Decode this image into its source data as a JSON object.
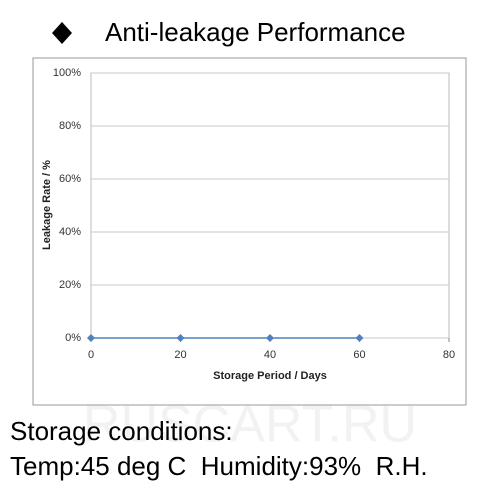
{
  "chart_data": {
    "type": "line",
    "title": "Anti-leakage Performance",
    "x_label": "Storage Period / Days",
    "y_label": "Leakage Rate / %",
    "x": [
      0,
      20,
      40,
      60
    ],
    "series": [
      {
        "name": "Leakage Rate",
        "color": "#4f81bd",
        "values": [
          0,
          0,
          0,
          0
        ]
      }
    ],
    "xlim": [
      0,
      80
    ],
    "xticks": [
      0,
      20,
      40,
      60,
      80
    ],
    "ylim": [
      0,
      100
    ],
    "yticks": [
      {
        "value": 0,
        "label": "0%"
      },
      {
        "value": 20,
        "label": "20%"
      },
      {
        "value": 40,
        "label": "40%"
      },
      {
        "value": 60,
        "label": "60%"
      },
      {
        "value": 80,
        "label": "80%"
      },
      {
        "value": 100,
        "label": "100%"
      }
    ],
    "grid": true
  },
  "notes": [
    "Storage conditions:",
    "Temp:45 deg C  Humidity:93%  R.H."
  ],
  "watermark": "RUSCART.RU"
}
